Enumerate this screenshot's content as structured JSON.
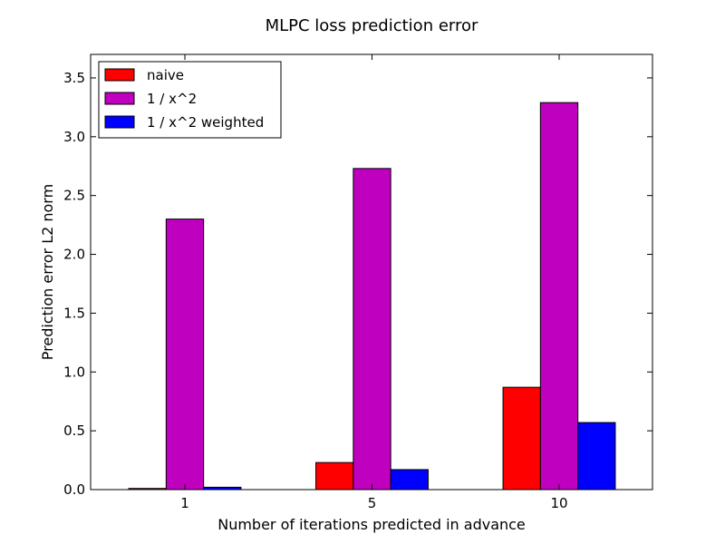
{
  "chart_data": {
    "type": "bar",
    "title": "MLPC loss prediction error",
    "xlabel": "Number of iterations predicted in advance",
    "ylabel": "Prediction error L2 norm",
    "categories": [
      "1",
      "5",
      "10"
    ],
    "ylim": [
      0,
      3.7
    ],
    "yticks": [
      0.0,
      0.5,
      1.0,
      1.5,
      2.0,
      2.5,
      3.0,
      3.5
    ],
    "ytick_labels": [
      "0.0",
      "0.5",
      "1.0",
      "1.5",
      "2.0",
      "2.5",
      "3.0",
      "3.5"
    ],
    "grid": false,
    "legend_position": "top-left",
    "series": [
      {
        "name": "naive",
        "color": "#ff0000",
        "values": [
          0.01,
          0.23,
          0.87
        ]
      },
      {
        "name": "1 / x^2",
        "color": "#bf00bf",
        "values": [
          2.3,
          2.73,
          3.29
        ]
      },
      {
        "name": "1 / x^2 weighted",
        "color": "#0000ff",
        "values": [
          0.02,
          0.17,
          0.57
        ]
      }
    ]
  }
}
